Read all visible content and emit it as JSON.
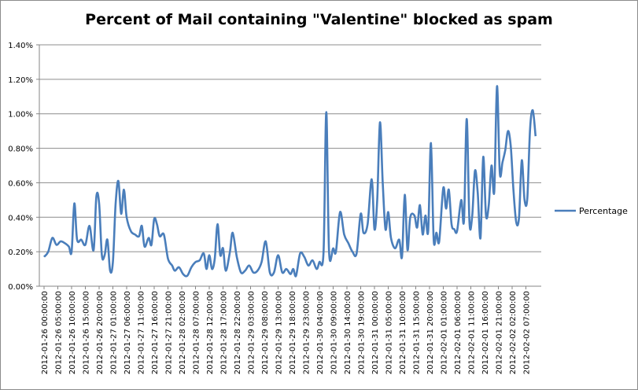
{
  "chart_data": {
    "type": "line",
    "title": "Percent of Mail containing \"Valentine\" blocked as spam",
    "xlabel": "",
    "ylabel": "",
    "ylim": [
      0,
      0.014
    ],
    "y_ticks": [
      "0.00%",
      "0.20%",
      "0.40%",
      "0.60%",
      "0.80%",
      "1.00%",
      "1.20%",
      "1.40%"
    ],
    "grid": true,
    "legend_position": "right",
    "x_tick_labels": [
      "2012-01-26 00:00:00",
      "2012-01-26 05:00:00",
      "2012-01-26 10:00:00",
      "2012-01-26 15:00:00",
      "2012-01-26 20:00:00",
      "2012-01-27 01:00:00",
      "2012-01-27 06:00:00",
      "2012-01-27 11:00:00",
      "2012-01-27 16:00:00",
      "2012-01-27 21:00:00",
      "2012-01-28 02:00:00",
      "2012-01-28 07:00:00",
      "2012-01-28 12:00:00",
      "2012-01-28 17:00:00",
      "2012-01-28 22:00:00",
      "2012-01-29 03:00:00",
      "2012-01-29 08:00:00",
      "2012-01-29 13:00:00",
      "2012-01-29 18:00:00",
      "2012-01-29 23:00:00",
      "2012-01-30 04:00:00",
      "2012-01-30 09:00:00",
      "2012-01-30 14:00:00",
      "2012-01-30 19:00:00",
      "2012-01-31 00:00:00",
      "2012-01-31 05:00:00",
      "2012-01-31 10:00:00",
      "2012-01-31 15:00:00",
      "2012-01-31 20:00:00",
      "2012-02-01 01:00:00",
      "2012-02-01 06:00:00",
      "2012-02-01 11:00:00",
      "2012-02-01 16:00:00",
      "2012-02-01 21:00:00",
      "2012-02-02 02:00:00",
      "2012-02-02 07:00:00"
    ],
    "series": [
      {
        "name": "Percentage",
        "color": "#4a7ebb",
        "x_start_index": 0,
        "x_end_index": 36,
        "values": [
          [
            0.0,
            0.0017
          ],
          [
            0.3,
            0.002
          ],
          [
            0.6,
            0.0028
          ],
          [
            0.9,
            0.0024
          ],
          [
            1.2,
            0.0026
          ],
          [
            1.5,
            0.0025
          ],
          [
            1.8,
            0.0023
          ],
          [
            2.0,
            0.002
          ],
          [
            2.2,
            0.0048
          ],
          [
            2.4,
            0.0027
          ],
          [
            2.7,
            0.0027
          ],
          [
            3.0,
            0.0024
          ],
          [
            3.3,
            0.0035
          ],
          [
            3.6,
            0.0021
          ],
          [
            3.8,
            0.0052
          ],
          [
            4.0,
            0.0048
          ],
          [
            4.2,
            0.0018
          ],
          [
            4.4,
            0.0018
          ],
          [
            4.6,
            0.0027
          ],
          [
            4.8,
            0.0009
          ],
          [
            5.0,
            0.0014
          ],
          [
            5.2,
            0.0048
          ],
          [
            5.4,
            0.0061
          ],
          [
            5.6,
            0.0042
          ],
          [
            5.8,
            0.0056
          ],
          [
            6.0,
            0.004
          ],
          [
            6.3,
            0.0032
          ],
          [
            6.6,
            0.003
          ],
          [
            6.9,
            0.0029
          ],
          [
            7.1,
            0.0035
          ],
          [
            7.3,
            0.0023
          ],
          [
            7.6,
            0.0028
          ],
          [
            7.8,
            0.0024
          ],
          [
            8.0,
            0.0039
          ],
          [
            8.2,
            0.0036
          ],
          [
            8.4,
            0.0029
          ],
          [
            8.7,
            0.003
          ],
          [
            9.0,
            0.0016
          ],
          [
            9.3,
            0.0012
          ],
          [
            9.5,
            0.0009
          ],
          [
            9.8,
            0.0011
          ],
          [
            10.1,
            0.0007
          ],
          [
            10.4,
            0.0006
          ],
          [
            10.7,
            0.0011
          ],
          [
            11.0,
            0.0014
          ],
          [
            11.3,
            0.0015
          ],
          [
            11.6,
            0.0019
          ],
          [
            11.8,
            0.001
          ],
          [
            12.0,
            0.0018
          ],
          [
            12.2,
            0.001
          ],
          [
            12.4,
            0.0016
          ],
          [
            12.6,
            0.0036
          ],
          [
            12.8,
            0.0018
          ],
          [
            13.0,
            0.0022
          ],
          [
            13.2,
            0.0009
          ],
          [
            13.5,
            0.002
          ],
          [
            13.7,
            0.0031
          ],
          [
            14.0,
            0.0017
          ],
          [
            14.3,
            0.0008
          ],
          [
            14.6,
            0.0009
          ],
          [
            14.9,
            0.0012
          ],
          [
            15.2,
            0.0008
          ],
          [
            15.5,
            0.0009
          ],
          [
            15.8,
            0.0014
          ],
          [
            16.1,
            0.0026
          ],
          [
            16.4,
            0.0008
          ],
          [
            16.7,
            0.0008
          ],
          [
            17.0,
            0.0018
          ],
          [
            17.3,
            0.0008
          ],
          [
            17.6,
            0.001
          ],
          [
            17.9,
            0.0007
          ],
          [
            18.1,
            0.001
          ],
          [
            18.3,
            0.0006
          ],
          [
            18.6,
            0.0019
          ],
          [
            18.9,
            0.0017
          ],
          [
            19.2,
            0.0012
          ],
          [
            19.5,
            0.0015
          ],
          [
            19.8,
            0.001
          ],
          [
            20.0,
            0.0014
          ],
          [
            20.3,
            0.002
          ],
          [
            20.5,
            0.0101
          ],
          [
            20.7,
            0.002
          ],
          [
            21.0,
            0.0022
          ],
          [
            21.2,
            0.002
          ],
          [
            21.5,
            0.0043
          ],
          [
            21.8,
            0.003
          ],
          [
            22.1,
            0.0025
          ],
          [
            22.4,
            0.002
          ],
          [
            22.7,
            0.0019
          ],
          [
            23.0,
            0.0042
          ],
          [
            23.2,
            0.0031
          ],
          [
            23.5,
            0.0036
          ],
          [
            23.8,
            0.0062
          ],
          [
            24.0,
            0.0033
          ],
          [
            24.2,
            0.005
          ],
          [
            24.4,
            0.0095
          ],
          [
            24.6,
            0.006
          ],
          [
            24.8,
            0.0033
          ],
          [
            25.0,
            0.0043
          ],
          [
            25.2,
            0.0028
          ],
          [
            25.5,
            0.0022
          ],
          [
            25.8,
            0.0027
          ],
          [
            26.0,
            0.0017
          ],
          [
            26.2,
            0.0053
          ],
          [
            26.4,
            0.0021
          ],
          [
            26.6,
            0.004
          ],
          [
            26.9,
            0.0041
          ],
          [
            27.1,
            0.0034
          ],
          [
            27.3,
            0.0047
          ],
          [
            27.5,
            0.003
          ],
          [
            27.7,
            0.0041
          ],
          [
            27.9,
            0.0032
          ],
          [
            28.1,
            0.0083
          ],
          [
            28.3,
            0.0027
          ],
          [
            28.5,
            0.0031
          ],
          [
            28.7,
            0.0026
          ],
          [
            29.0,
            0.0057
          ],
          [
            29.2,
            0.0045
          ],
          [
            29.4,
            0.0056
          ],
          [
            29.6,
            0.0036
          ],
          [
            29.8,
            0.0033
          ],
          [
            30.0,
            0.0032
          ],
          [
            30.3,
            0.005
          ],
          [
            30.5,
            0.0038
          ],
          [
            30.7,
            0.0097
          ],
          [
            30.9,
            0.0037
          ],
          [
            31.1,
            0.0041
          ],
          [
            31.3,
            0.0067
          ],
          [
            31.5,
            0.0054
          ],
          [
            31.7,
            0.0028
          ],
          [
            31.9,
            0.0075
          ],
          [
            32.1,
            0.0041
          ],
          [
            32.3,
            0.0047
          ],
          [
            32.5,
            0.007
          ],
          [
            32.7,
            0.0055
          ],
          [
            32.9,
            0.0116
          ],
          [
            33.1,
            0.0066
          ],
          [
            33.3,
            0.0072
          ],
          [
            33.5,
            0.0079
          ],
          [
            33.7,
            0.009
          ],
          [
            33.9,
            0.0081
          ],
          [
            34.1,
            0.0055
          ],
          [
            34.3,
            0.0037
          ],
          [
            34.5,
            0.004
          ],
          [
            34.7,
            0.0073
          ],
          [
            34.9,
            0.005
          ],
          [
            35.1,
            0.0051
          ],
          [
            35.3,
            0.0091
          ],
          [
            35.5,
            0.0102
          ],
          [
            35.7,
            0.0087
          ]
        ]
      }
    ]
  }
}
